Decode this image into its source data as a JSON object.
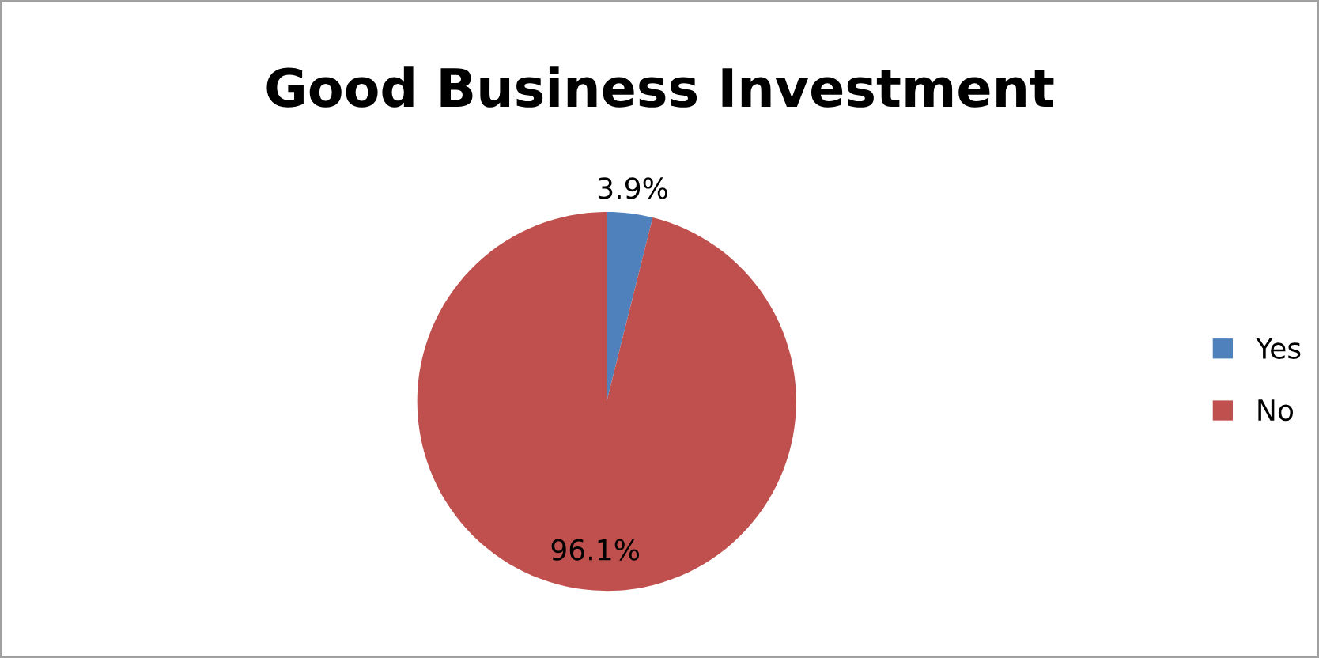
{
  "chart_data": {
    "type": "pie",
    "title": "Good Business Investment",
    "categories": [
      "Yes",
      "No"
    ],
    "values": [
      3.9,
      96.1
    ],
    "value_labels": [
      "3.9%",
      "96.1%"
    ],
    "colors": [
      "#4f81bd",
      "#c0504d"
    ],
    "legend": "right"
  }
}
